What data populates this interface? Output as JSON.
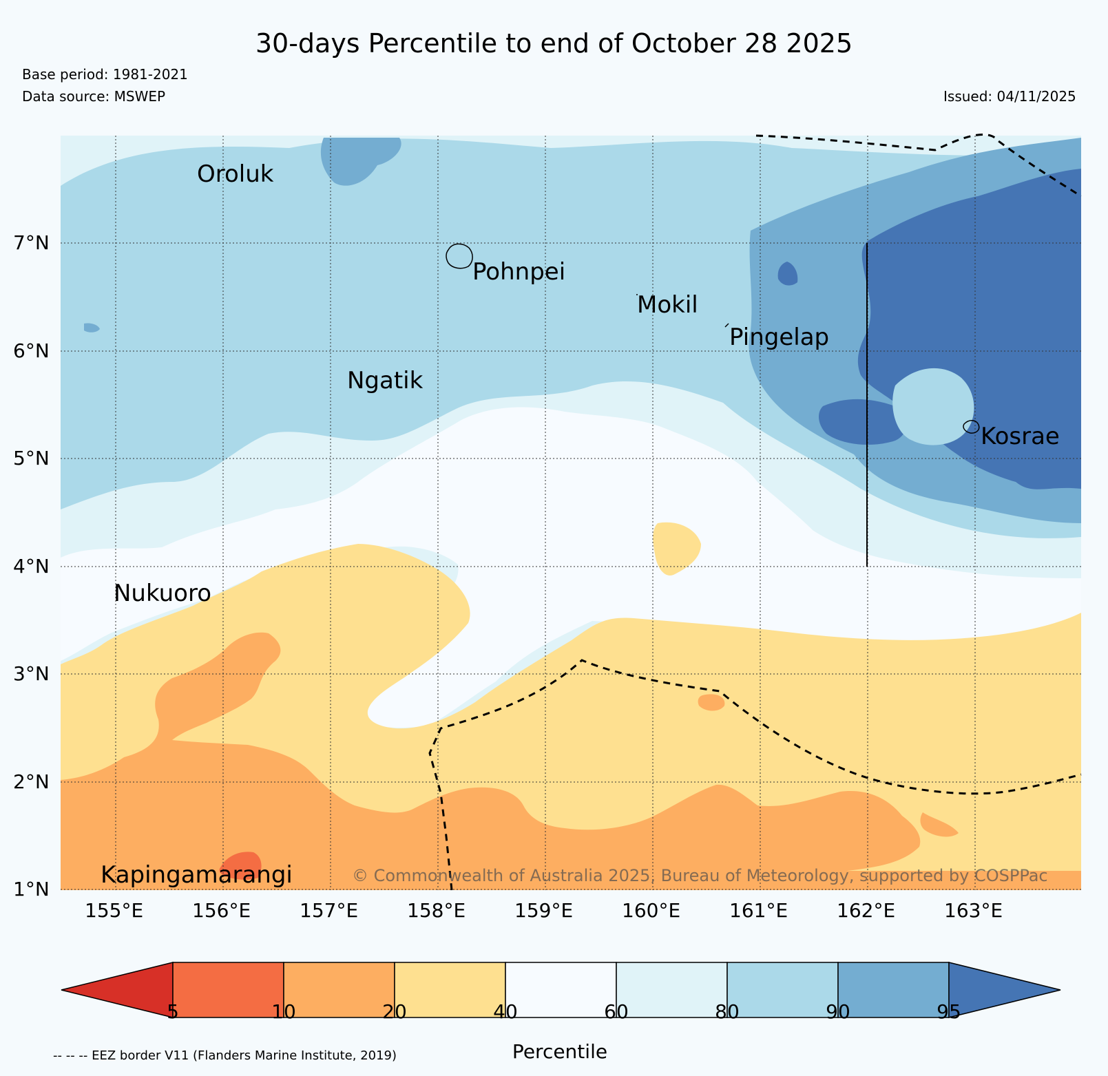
{
  "header": {
    "title": "30-days Percentile to end of October 28 2025",
    "base_period": "Base period: 1981-2021",
    "data_source": "Data source: MSWEP",
    "issued": "Issued: 04/11/2025"
  },
  "map": {
    "copyright": "© Commonwealth of Australia 2025, Bureau of Meteorology, supported by COSPPac",
    "legend_note": "-- -- -- EEZ border V11 (Flanders Marine Institute, 2019)",
    "places": [
      {
        "name": "Oroluk"
      },
      {
        "name": "Pohnpei"
      },
      {
        "name": "Mokil"
      },
      {
        "name": "Pingelap"
      },
      {
        "name": "Ngatik"
      },
      {
        "name": "Kosrae"
      },
      {
        "name": "Nukuoro"
      },
      {
        "name": "Kapingamarangi"
      }
    ],
    "colors": {
      "background": "#f5fafd",
      "very_low": "#d73027",
      "low": "#f46d43",
      "mid_low": "#fdae61",
      "below_avg": "#fee090",
      "neutral": "#f7fbff",
      "above_avg": "#e0f3f8",
      "high": "#abd9e9",
      "very_high": "#74add1",
      "extreme": "#4575b4"
    }
  },
  "chart_data": {
    "type": "heatmap",
    "title": "30-days Percentile to end of October 28 2025",
    "subtitle": "",
    "xlabel": "",
    "ylabel": "",
    "x_ticks": [
      "155°E",
      "156°E",
      "157°E",
      "158°E",
      "159°E",
      "160°E",
      "161°E",
      "162°E",
      "163°E"
    ],
    "y_ticks": [
      "7°N",
      "6°N",
      "5°N",
      "4°N",
      "3°N",
      "2°N",
      "1°N"
    ],
    "x_range": [
      154.5,
      164
    ],
    "y_range": [
      1,
      8
    ],
    "legend": {
      "title": "Percentile",
      "ticks": [
        5,
        10,
        20,
        40,
        60,
        80,
        90,
        95
      ],
      "bands": [
        {
          "range": "<5",
          "color": "#d73027"
        },
        {
          "range": "5-10",
          "color": "#f46d43"
        },
        {
          "range": "10-20",
          "color": "#fdae61"
        },
        {
          "range": "20-40",
          "color": "#fee090"
        },
        {
          "range": "40-60",
          "color": "#f7fbff"
        },
        {
          "range": "60-80",
          "color": "#e0f3f8"
        },
        {
          "range": "80-90",
          "color": "#abd9e9"
        },
        {
          "range": "90-95",
          "color": "#74add1"
        },
        {
          "range": ">95",
          "color": "#4575b4"
        }
      ]
    }
  }
}
